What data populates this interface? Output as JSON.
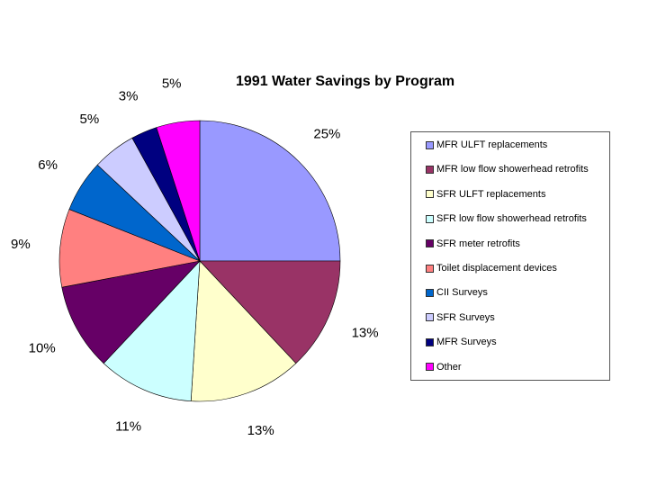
{
  "chart_data": {
    "type": "pie",
    "title": "1991 Water Savings by Program",
    "categories": [
      "MFR ULFT replacements",
      "MFR low flow showerhead retrofits",
      "SFR ULFT replacements",
      "SFR low flow showerhead retrofits",
      "SFR meter retrofits",
      "Toilet displacement devices",
      "CII Surveys",
      "SFR Surveys",
      "MFR Surveys",
      "Other"
    ],
    "values": [
      25,
      13,
      13,
      11,
      10,
      9,
      6,
      5,
      3,
      5
    ],
    "labels": [
      "25%",
      "13%",
      "13%",
      "11%",
      "10%",
      "9%",
      "6%",
      "5%",
      "3%",
      "5%"
    ],
    "colors": [
      "#9999ff",
      "#993366",
      "#ffffcc",
      "#ccffff",
      "#660066",
      "#ff8080",
      "#0066cc",
      "#ccccff",
      "#000080",
      "#ff00ff"
    ],
    "legend_position": "right"
  }
}
